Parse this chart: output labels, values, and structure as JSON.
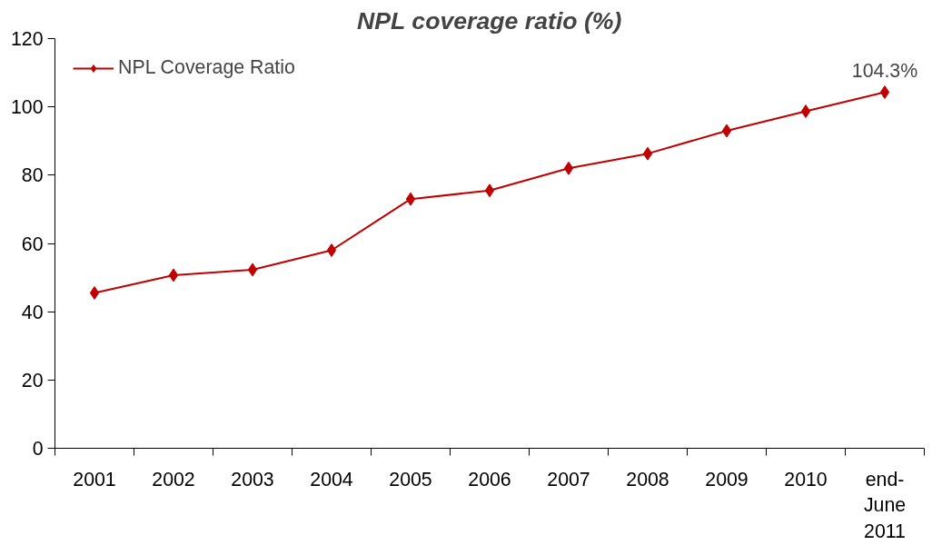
{
  "chart_data": {
    "type": "line",
    "title": "NPL coverage ratio (%)",
    "categories": [
      "2001",
      "2002",
      "2003",
      "2004",
      "2005",
      "2006",
      "2007",
      "2008",
      "2009",
      "2010",
      "end-June 2011"
    ],
    "series": [
      {
        "name": "NPL Coverage Ratio",
        "color": "#c00000",
        "values": [
          45.5,
          50.7,
          52.3,
          58,
          73,
          75.5,
          82,
          86.3,
          93,
          98.7,
          104.3
        ],
        "value_labels": [
          null,
          null,
          null,
          null,
          null,
          null,
          null,
          null,
          null,
          null,
          "104.3%"
        ]
      }
    ],
    "ylim": [
      0,
      120
    ],
    "yticks": [
      0,
      20,
      40,
      60,
      80,
      100,
      120
    ],
    "grid": false,
    "legend": "top left",
    "marker": "diamond",
    "line_style": "solid"
  }
}
